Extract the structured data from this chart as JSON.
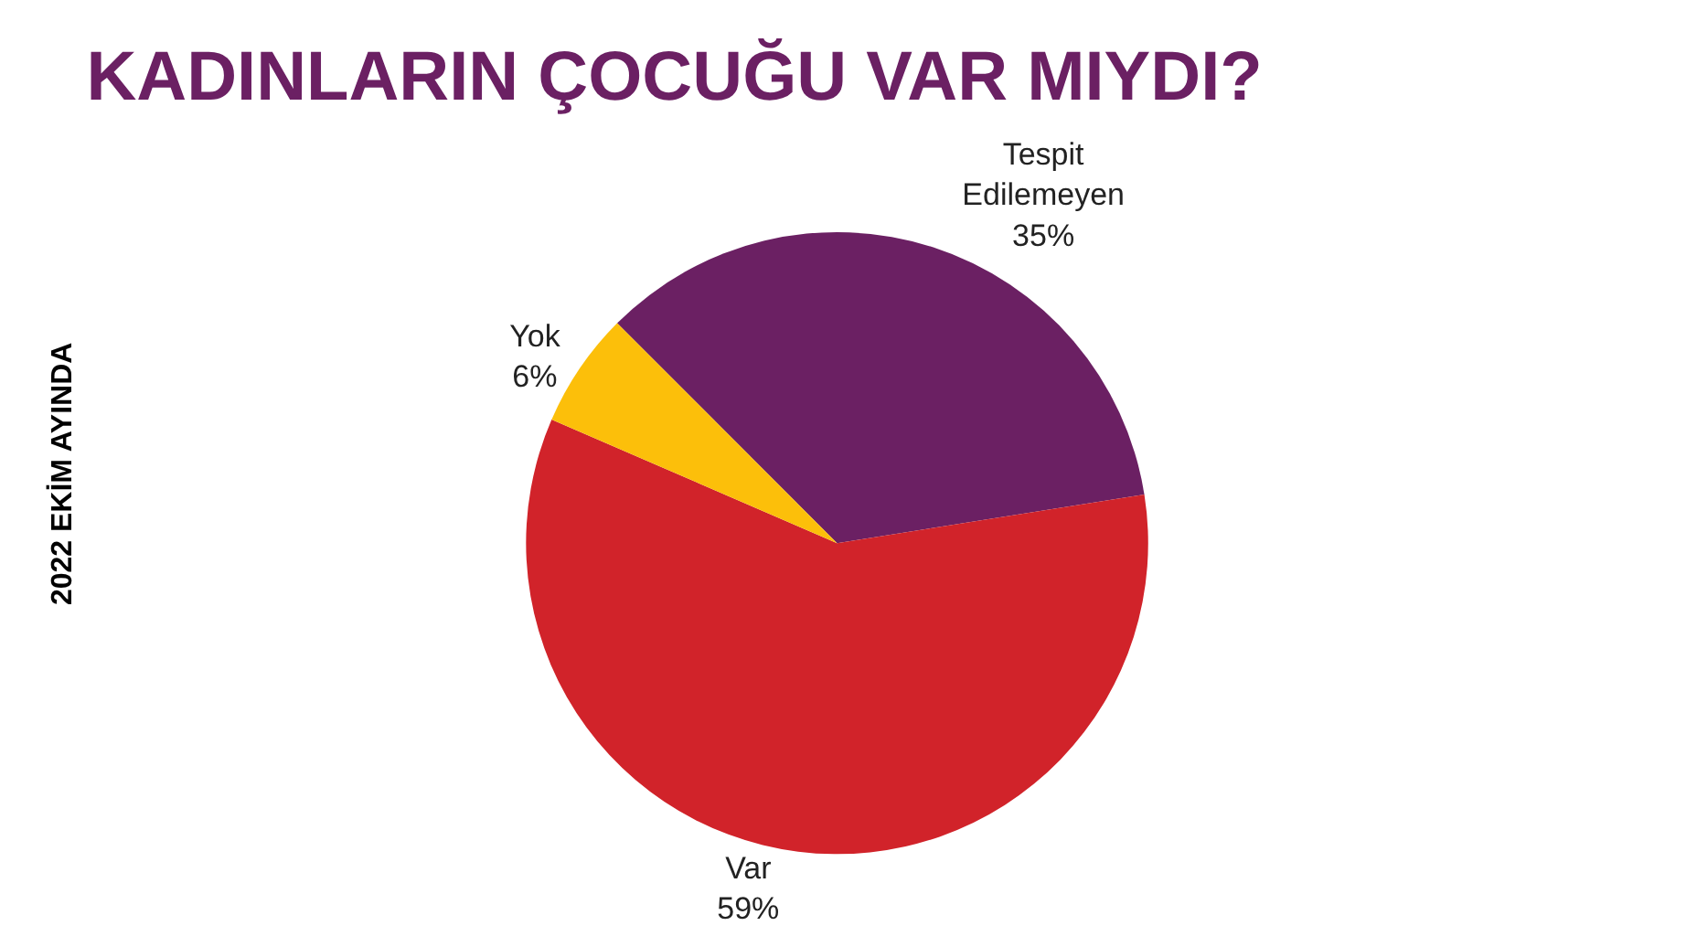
{
  "chart_data": {
    "type": "pie",
    "title": "KADINLARIN ÇOCUĞU VAR MIYDI?",
    "categories": [
      "Tespit Edilemeyen",
      "Var",
      "Yok"
    ],
    "values": [
      35,
      59,
      6
    ],
    "value_labels": [
      "35%",
      "59%",
      "6%"
    ],
    "colors": [
      "#6b2063",
      "#d1232a",
      "#fcbf0a"
    ],
    "annotations": [
      "2022 EKİM AYINDA"
    ],
    "legend": false
  }
}
